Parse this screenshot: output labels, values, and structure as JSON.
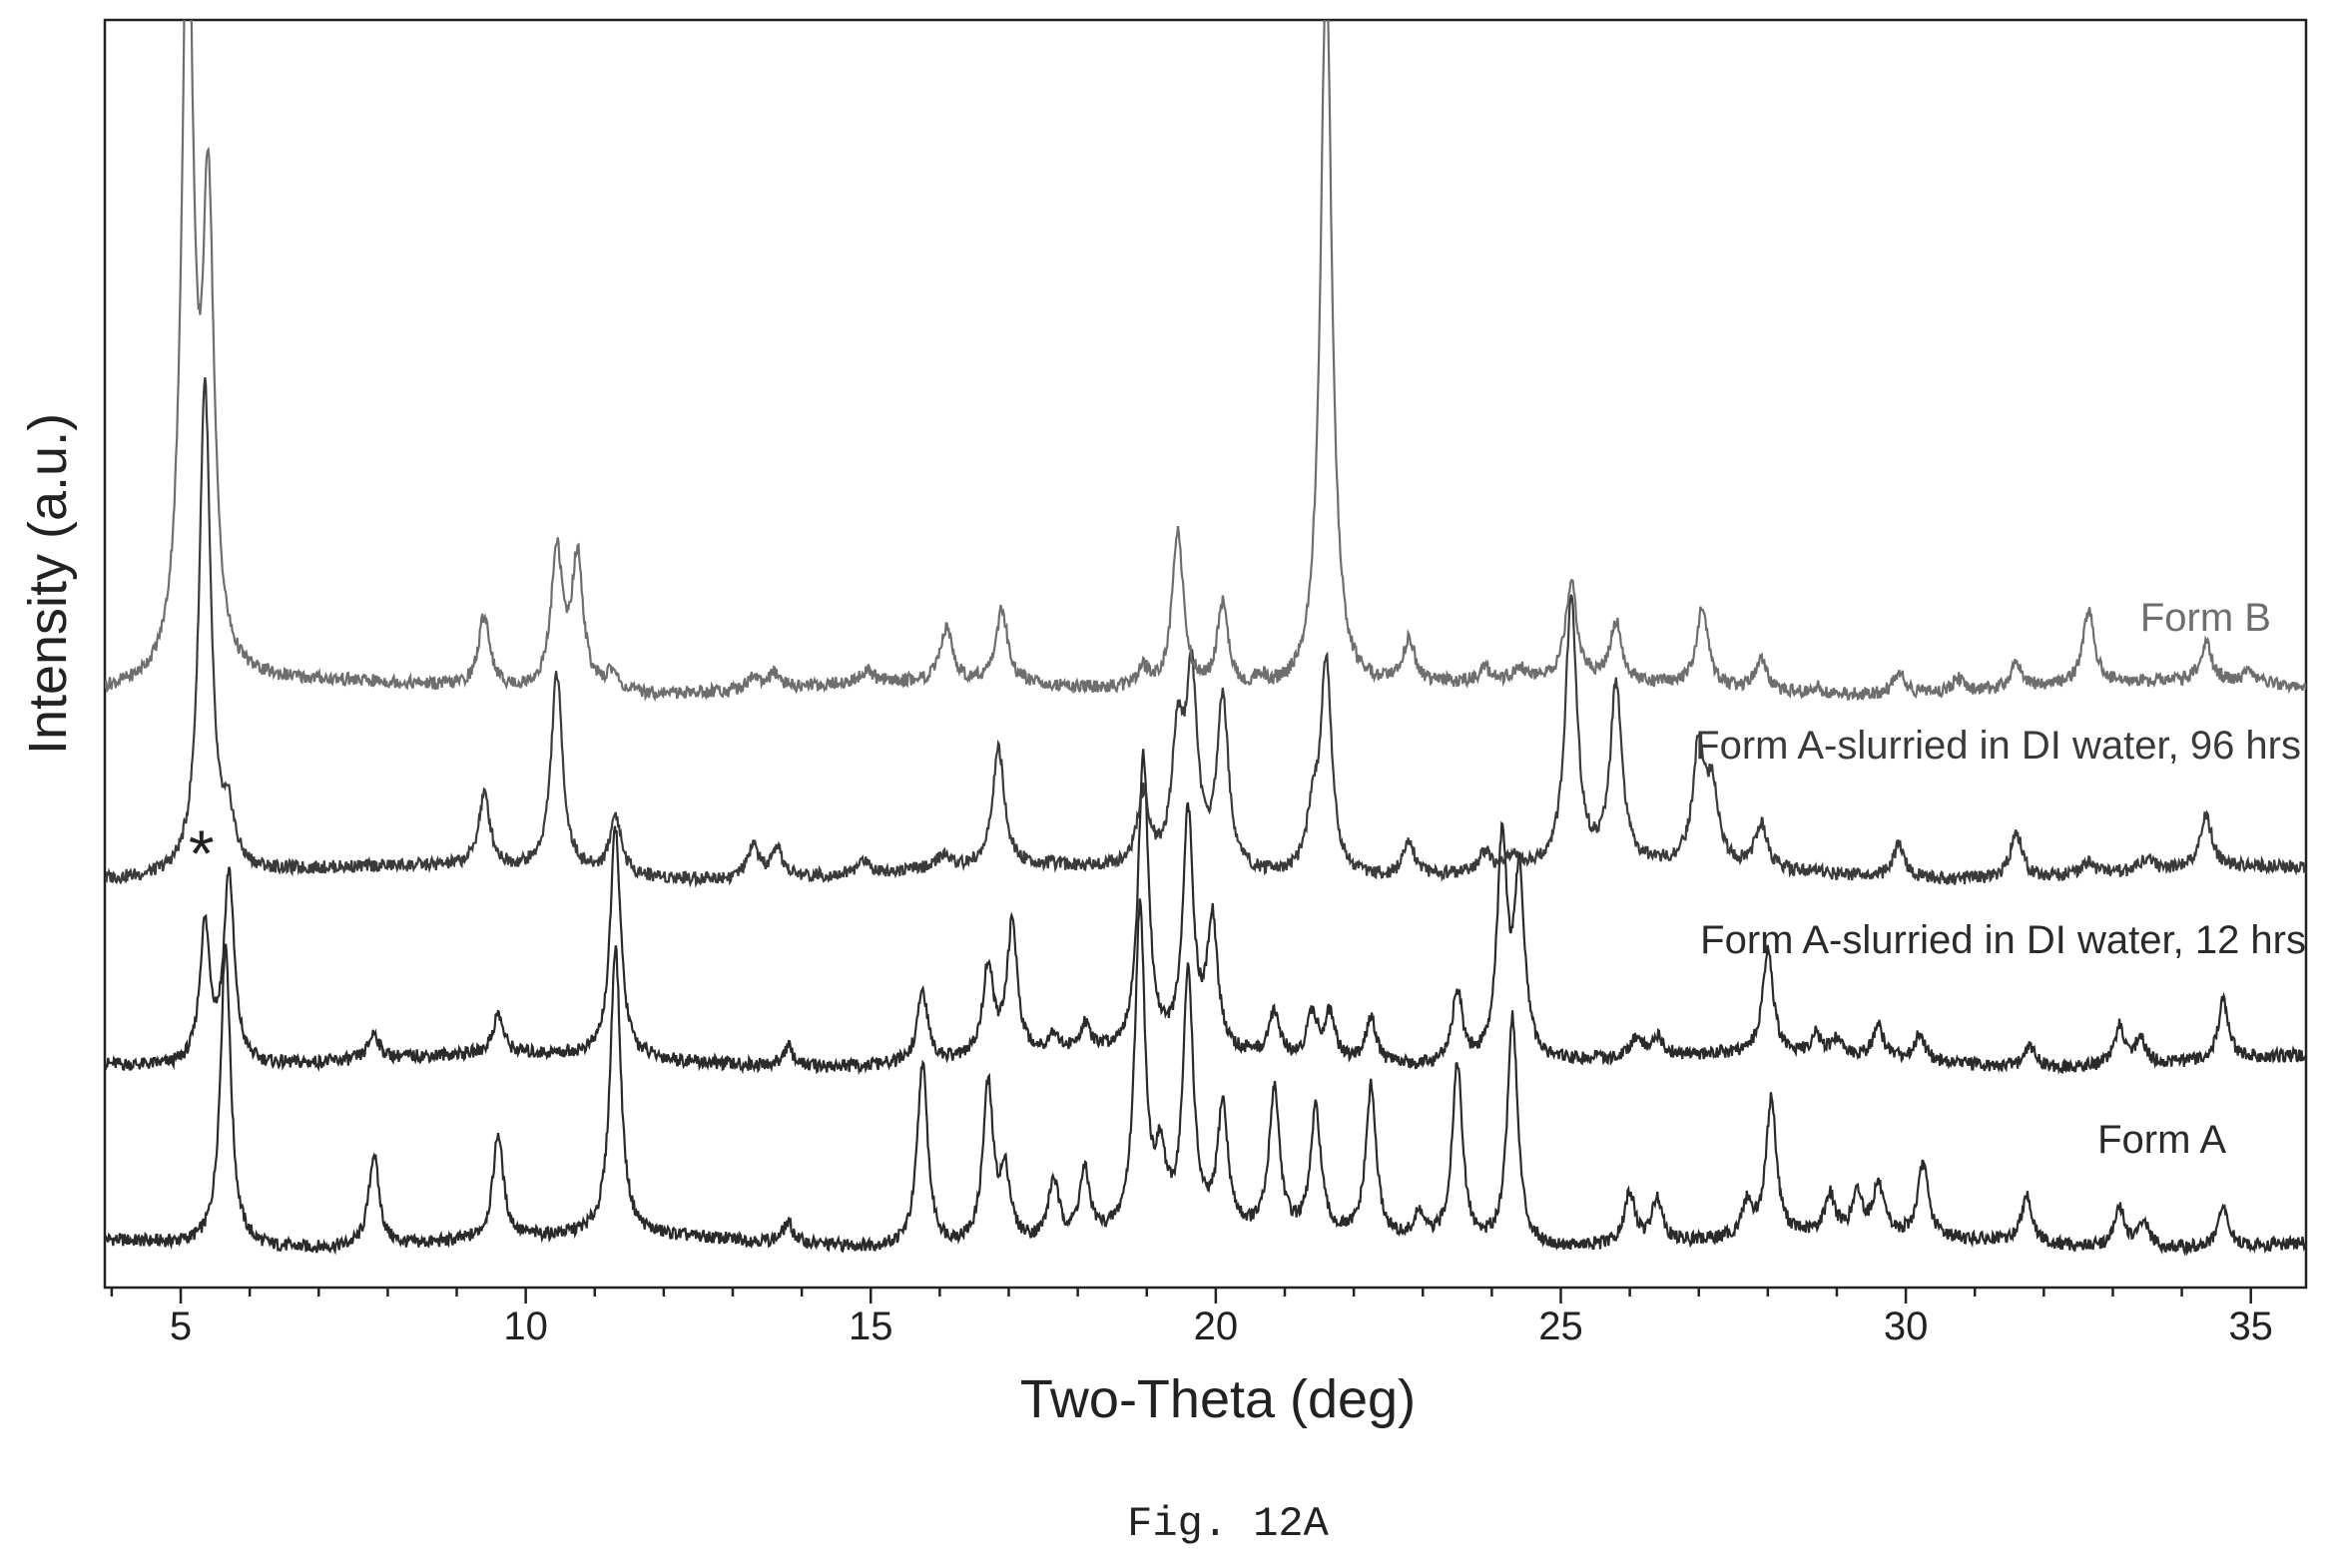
{
  "caption": "Fig. 12A",
  "chart_data": {
    "type": "line",
    "xlabel": "Two-Theta (deg)",
    "ylabel": "Intensity (a.u.)",
    "xlim": [
      3.9,
      35.8
    ],
    "x_major_ticks": [
      5,
      10,
      15,
      20,
      25,
      30,
      35
    ],
    "y_ticks_shown": false,
    "grid": false,
    "series_order": "bottom-to-top",
    "annotation": {
      "text": "*",
      "x": 5.3,
      "series": "Form A-slurried in DI water, 96 hrs"
    },
    "series": [
      {
        "name": "Form A",
        "color": "#2a2a2a",
        "peaks": [
          [
            5.65,
            92
          ],
          [
            7.8,
            28
          ],
          [
            9.6,
            32
          ],
          [
            11.3,
            88
          ],
          [
            13.8,
            6
          ],
          [
            15.75,
            56
          ],
          [
            16.7,
            48
          ],
          [
            16.95,
            20
          ],
          [
            17.65,
            18
          ],
          [
            18.1,
            20
          ],
          [
            18.9,
            98
          ],
          [
            19.2,
            20
          ],
          [
            19.6,
            78
          ],
          [
            20.1,
            38
          ],
          [
            20.85,
            44
          ],
          [
            21.45,
            38
          ],
          [
            22.25,
            46
          ],
          [
            22.95,
            8
          ],
          [
            23.5,
            55
          ],
          [
            24.3,
            70
          ],
          [
            26.0,
            16
          ],
          [
            26.4,
            14
          ],
          [
            27.7,
            10
          ],
          [
            28.05,
            42
          ],
          [
            28.9,
            12
          ],
          [
            29.3,
            12
          ],
          [
            29.6,
            15
          ],
          [
            30.25,
            22
          ],
          [
            31.75,
            15
          ],
          [
            33.1,
            12
          ],
          [
            33.45,
            8
          ],
          [
            34.6,
            12
          ]
        ]
      },
      {
        "name": "Form A-slurried in DI water, 12 hrs",
        "color": "#2a2a2a",
        "peaks": [
          [
            5.35,
            42
          ],
          [
            5.7,
            58
          ],
          [
            7.8,
            8
          ],
          [
            9.6,
            12
          ],
          [
            11.3,
            70
          ],
          [
            13.8,
            6
          ],
          [
            15.75,
            22
          ],
          [
            16.7,
            28
          ],
          [
            17.05,
            40
          ],
          [
            17.65,
            6
          ],
          [
            18.1,
            8
          ],
          [
            18.95,
            90
          ],
          [
            19.6,
            72
          ],
          [
            19.95,
            40
          ],
          [
            20.85,
            14
          ],
          [
            21.4,
            14
          ],
          [
            21.65,
            14
          ],
          [
            22.25,
            14
          ],
          [
            23.5,
            22
          ],
          [
            24.15,
            66
          ],
          [
            24.4,
            56
          ],
          [
            26.1,
            6
          ],
          [
            26.4,
            6
          ],
          [
            28.0,
            32
          ],
          [
            28.7,
            6
          ],
          [
            29.0,
            5
          ],
          [
            29.6,
            10
          ],
          [
            30.2,
            8
          ],
          [
            31.8,
            6
          ],
          [
            33.1,
            12
          ],
          [
            33.4,
            8
          ],
          [
            34.6,
            18
          ]
        ]
      },
      {
        "name": "Form A-slurried in DI water, 96 hrs",
        "color": "#3a3a3a",
        "peaks": [
          [
            5.35,
            150
          ],
          [
            5.7,
            14
          ],
          [
            9.4,
            22
          ],
          [
            10.45,
            60
          ],
          [
            11.3,
            18
          ],
          [
            13.3,
            10
          ],
          [
            13.65,
            8
          ],
          [
            14.9,
            4
          ],
          [
            16.05,
            4
          ],
          [
            16.85,
            36
          ],
          [
            18.95,
            22
          ],
          [
            19.45,
            38
          ],
          [
            19.65,
            56
          ],
          [
            20.1,
            52
          ],
          [
            21.4,
            16
          ],
          [
            21.6,
            64
          ],
          [
            22.8,
            10
          ],
          [
            23.9,
            6
          ],
          [
            24.3,
            4
          ],
          [
            25.15,
            82
          ],
          [
            25.8,
            54
          ],
          [
            27.0,
            36
          ],
          [
            27.2,
            22
          ],
          [
            27.9,
            14
          ],
          [
            29.9,
            10
          ],
          [
            31.6,
            14
          ],
          [
            32.65,
            4
          ],
          [
            33.5,
            4
          ],
          [
            34.35,
            16
          ]
        ]
      },
      {
        "name": "Form B",
        "color": "#6e6e6e",
        "peaks": [
          [
            5.1,
            240
          ],
          [
            5.4,
            140
          ],
          [
            9.4,
            22
          ],
          [
            10.45,
            42
          ],
          [
            10.75,
            40
          ],
          [
            11.25,
            6
          ],
          [
            13.3,
            4
          ],
          [
            13.6,
            4
          ],
          [
            14.95,
            4
          ],
          [
            16.1,
            16
          ],
          [
            16.9,
            22
          ],
          [
            18.95,
            6
          ],
          [
            19.45,
            48
          ],
          [
            20.1,
            26
          ],
          [
            20.65,
            4
          ],
          [
            21.6,
            220
          ],
          [
            22.8,
            14
          ],
          [
            23.9,
            4
          ],
          [
            24.4,
            4
          ],
          [
            25.15,
            30
          ],
          [
            25.8,
            18
          ],
          [
            27.05,
            24
          ],
          [
            27.9,
            10
          ],
          [
            28.7,
            2
          ],
          [
            29.9,
            7
          ],
          [
            30.75,
            4
          ],
          [
            31.6,
            7
          ],
          [
            32.65,
            22
          ],
          [
            34.35,
            12
          ],
          [
            35.0,
            4
          ]
        ]
      }
    ]
  }
}
